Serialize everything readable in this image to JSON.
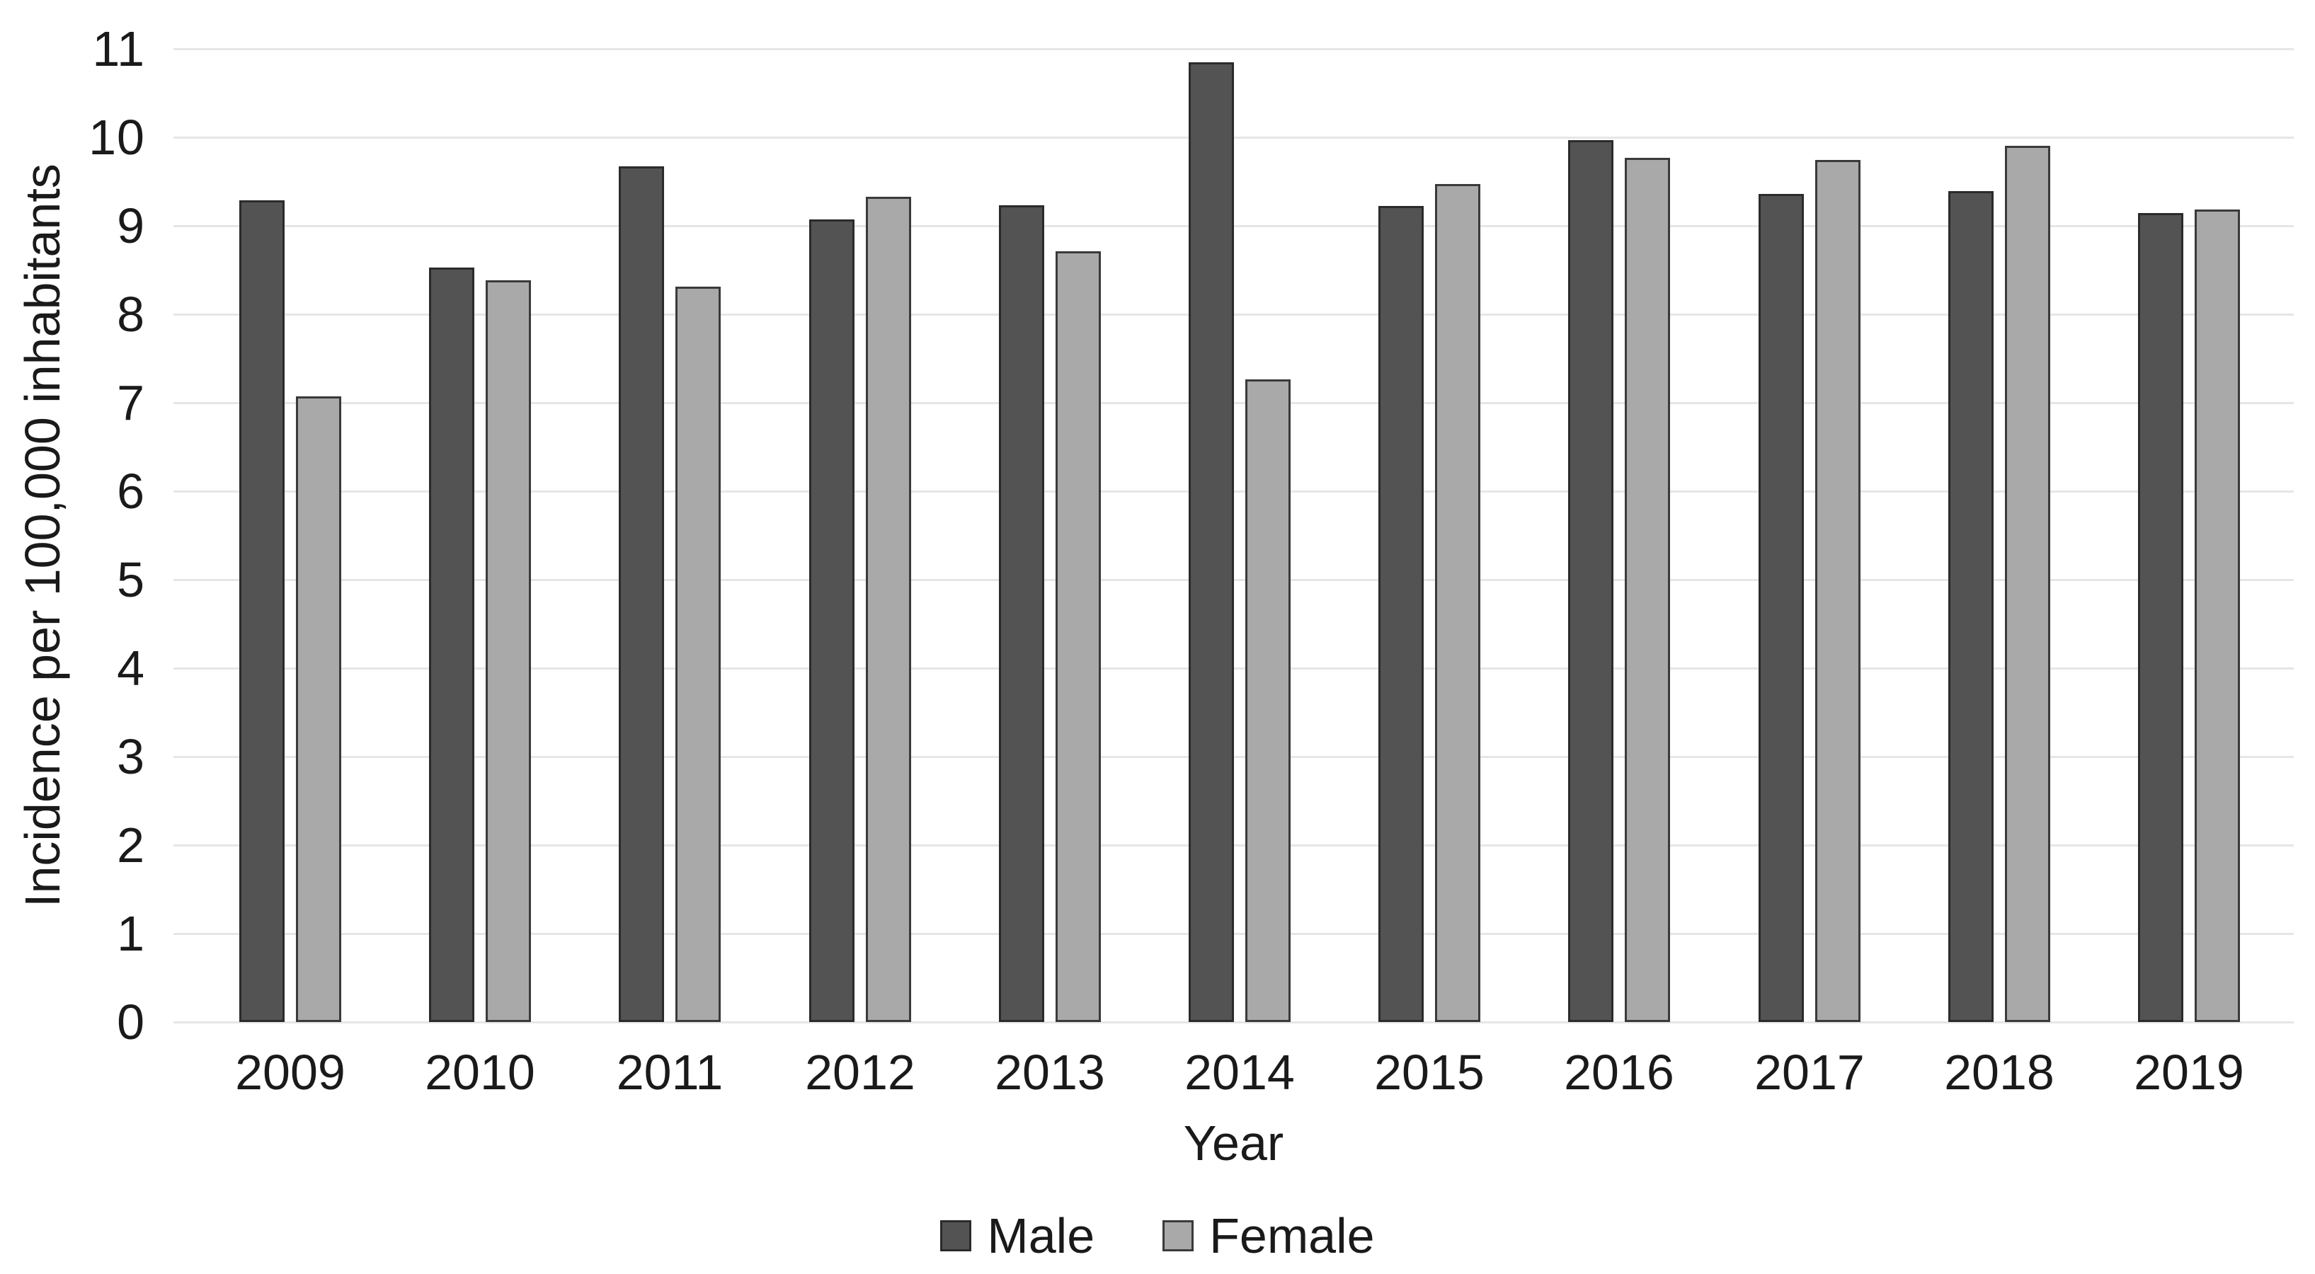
{
  "chart_data": {
    "type": "bar",
    "title": "",
    "xlabel": "Year",
    "ylabel": "Incidence per 100,000 inhabitants",
    "categories": [
      "2009",
      "2010",
      "2011",
      "2012",
      "2013",
      "2014",
      "2015",
      "2016",
      "2017",
      "2018",
      "2019"
    ],
    "series": [
      {
        "name": "Male",
        "color": "#535353",
        "border_color": "#2b2b2b",
        "values": [
          9.29,
          8.53,
          9.67,
          9.07,
          9.23,
          10.85,
          9.22,
          9.97,
          9.36,
          9.39,
          9.14
        ]
      },
      {
        "name": "Female",
        "color": "#a9a9a9",
        "border_color": "#3a3a3a",
        "values": [
          7.07,
          8.38,
          8.31,
          9.33,
          8.71,
          7.26,
          9.47,
          9.77,
          9.74,
          9.9,
          9.18
        ]
      }
    ],
    "ylim": [
      0,
      11
    ],
    "ytick_step": 1,
    "yticks": [
      "0",
      "1",
      "2",
      "3",
      "4",
      "5",
      "6",
      "7",
      "8",
      "9",
      "10",
      "11"
    ],
    "grid": "horizontal",
    "gridline_color": "#e6e6e6",
    "legend_position": "bottom",
    "background_color": "#ffffff",
    "text_color": "#1a1a1a"
  }
}
